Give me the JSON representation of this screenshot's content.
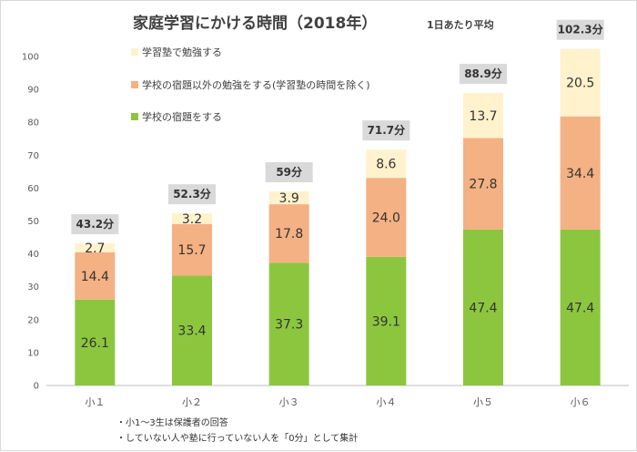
{
  "title": "家庭学習にかける時間（2018年）",
  "subtitle": "1日あたり平均",
  "notes": [
    "・小1～3生は保護者の回答",
    "・していない人や塾に行っていない人を「0分」として集計"
  ],
  "chart_data": {
    "type": "bar",
    "stacked": true,
    "title": "家庭学習にかける時間（2018年）",
    "subtitle": "1日あたり平均",
    "categories": [
      "小１",
      "小２",
      "小３",
      "小４",
      "小５",
      "小６"
    ],
    "series": [
      {
        "name": "学校の宿題をする",
        "color": "#8cc63f",
        "values": [
          26.1,
          33.4,
          37.3,
          39.1,
          47.4,
          47.4
        ]
      },
      {
        "name": "学校の宿題以外の勉強をする(学習塾の時間を除く)",
        "color": "#f4b183",
        "values": [
          14.4,
          15.7,
          17.8,
          24.0,
          27.8,
          34.4
        ]
      },
      {
        "name": "学習塾で勉強する",
        "color": "#fff2cc",
        "values": [
          2.7,
          3.2,
          3.9,
          8.6,
          13.7,
          20.5
        ]
      }
    ],
    "totals": [
      "43.2分",
      "52.3分",
      "59分",
      "71.7分",
      "88.9分",
      "102.3分"
    ],
    "segment_labels": [
      [
        "26.1",
        "33.4",
        "37.3",
        "39.1",
        "47.4",
        "47.4"
      ],
      [
        "14.4",
        "15.7",
        "17.8",
        "24.0",
        "27.8",
        "34.4"
      ],
      [
        "2.7",
        "3.2",
        "3.9",
        "8.6",
        "13.7",
        "20.5"
      ]
    ],
    "y_ticks": [
      "0",
      "10",
      "20",
      "30",
      "40",
      "50",
      "60",
      "70",
      "80",
      "90",
      "100"
    ],
    "ylim": [
      0,
      100
    ],
    "grid": false,
    "legend_position": "top-left"
  }
}
